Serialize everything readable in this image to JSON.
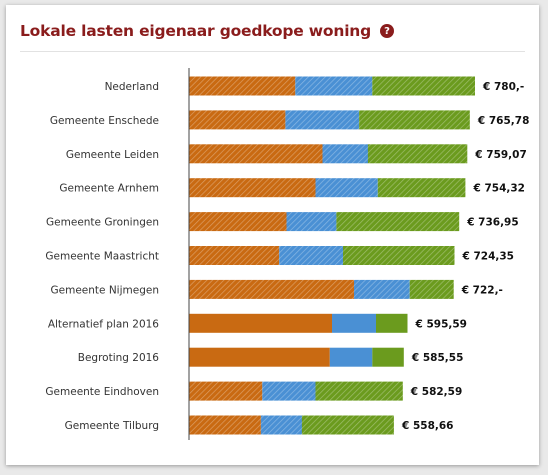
{
  "title": "Lokale lasten eigenaar goedkope woning",
  "help_icon": "question-icon",
  "help_symbol": "?",
  "colors": {
    "title": "#8a1c1c",
    "orange": "#c96a12",
    "blue": "#4a90d4",
    "green": "#6b9b1e"
  },
  "chart_data": {
    "type": "bar",
    "orientation": "horizontal",
    "stacked": true,
    "categories": [
      "Nederland",
      "Gemeente Enschede",
      "Gemeente Leiden",
      "Gemeente Arnhem",
      "Gemeente Groningen",
      "Gemeente Maastricht",
      "Gemeente Nijmegen",
      "Alternatief plan 2016",
      "Begroting 2016",
      "Gemeente Eindhoven",
      "Gemeente Tilburg"
    ],
    "series": [
      {
        "values": [
          290,
          263,
          364,
          345,
          266,
          246,
          450,
          390,
          384,
          200,
          196
        ]
      },
      {
        "values": [
          210,
          201,
          124,
          170,
          136,
          174,
          152,
          120,
          116,
          145,
          112
        ]
      },
      {
        "values": [
          280,
          302,
          271,
          239,
          335,
          304,
          120,
          86,
          86,
          238,
          251
        ]
      }
    ],
    "hatched": [
      true,
      true,
      true,
      true,
      true,
      true,
      true,
      false,
      false,
      true,
      true
    ],
    "value_labels": [
      "€ 780,-",
      "€ 765,78",
      "€ 759,07",
      "€ 754,32",
      "€ 736,95",
      "€ 724,35",
      "€ 722,-",
      "€ 595,59",
      "€ 585,55",
      "€ 582,59",
      "€ 558,66"
    ],
    "xlim": [
      0,
      780
    ],
    "grid": false,
    "legend": "none"
  }
}
